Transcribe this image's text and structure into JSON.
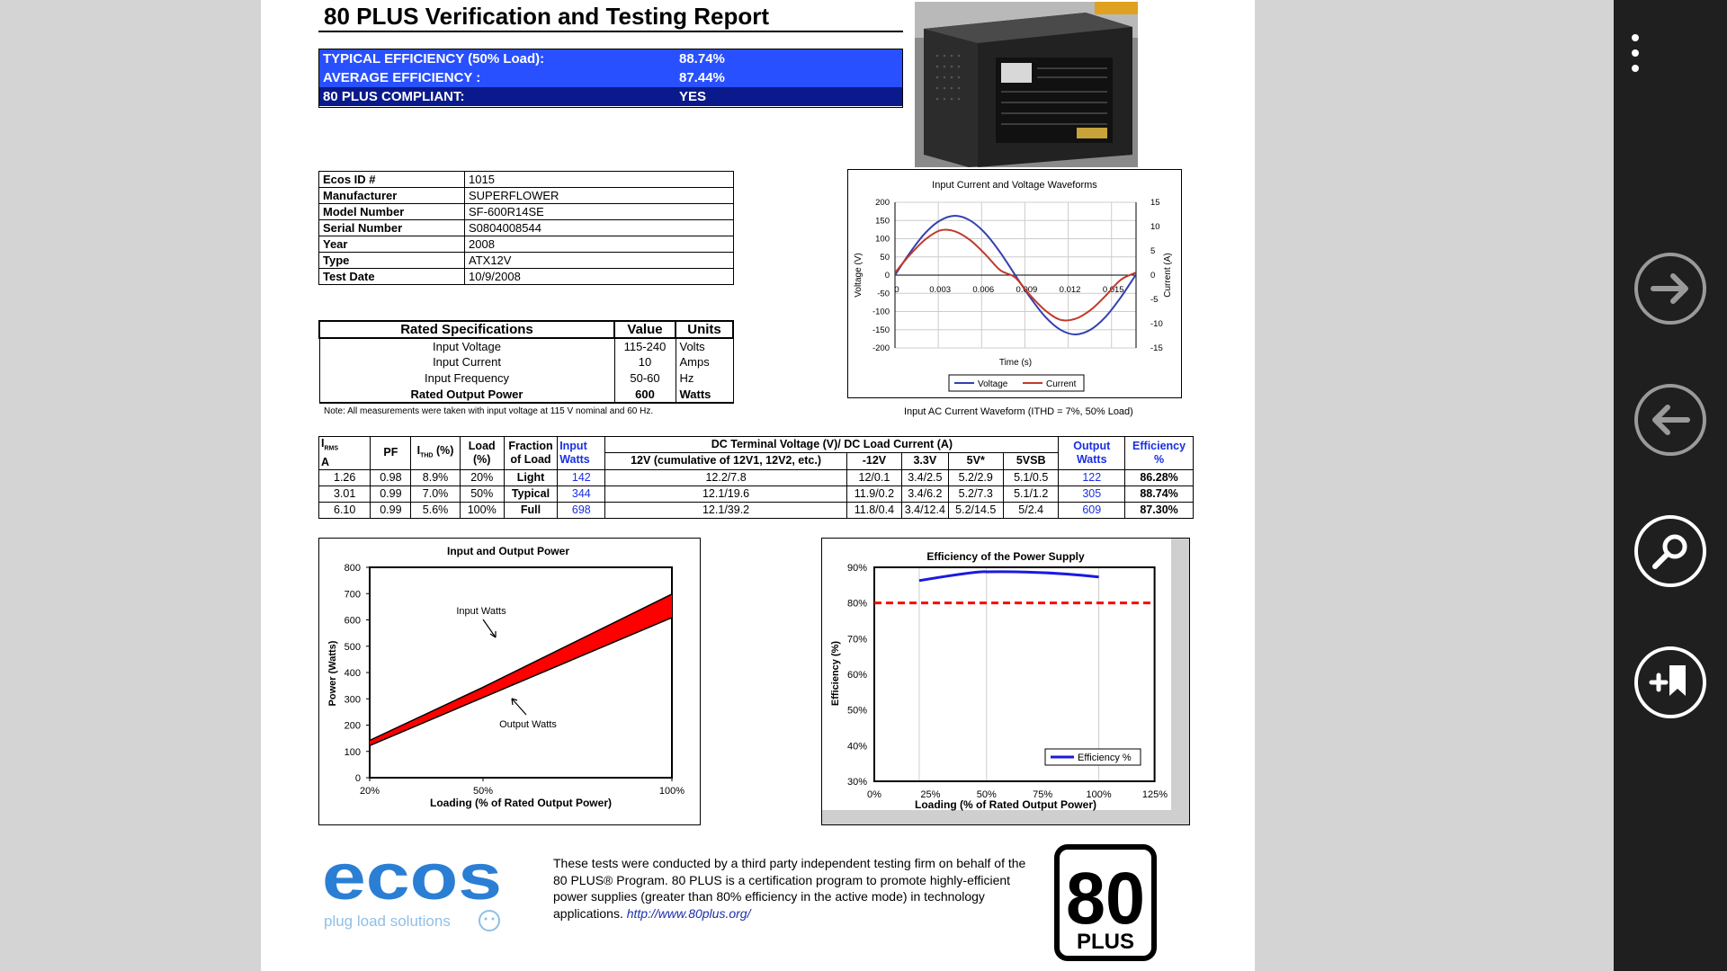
{
  "report": {
    "title": "80 PLUS Verification and Testing Report",
    "summary": [
      {
        "label": "TYPICAL EFFICIENCY (50% Load):",
        "value": "88.74%"
      },
      {
        "label": "AVERAGE EFFICIENCY :",
        "value": "87.44%"
      },
      {
        "label": "80 PLUS COMPLIANT:",
        "value": "YES"
      }
    ],
    "identity": [
      {
        "key": "Ecos ID #",
        "value": "1015"
      },
      {
        "key": "Manufacturer",
        "value": "SUPERFLOWER"
      },
      {
        "key": "Model Number",
        "value": "SF-600R14SE"
      },
      {
        "key": "Serial Number",
        "value": "S0804008544"
      },
      {
        "key": "Year",
        "value": "2008"
      },
      {
        "key": "Type",
        "value": "ATX12V"
      },
      {
        "key": "Test Date",
        "value": "10/9/2008"
      }
    ],
    "rated_specs": {
      "headers": [
        "Rated Specifications",
        "Value",
        "Units"
      ],
      "rows": [
        [
          "Input Voltage",
          "115-240",
          "Volts"
        ],
        [
          "Input Current",
          "10",
          "Amps"
        ],
        [
          "Input Frequency",
          "50-60",
          "Hz"
        ],
        [
          "Rated Output Power",
          "600",
          "Watts"
        ]
      ]
    },
    "note": "Note: All measurements were taken with input voltage at 115 V nominal and 60 Hz.",
    "waveform_caption": "Input AC Current Waveform (ITHD = 7%, 50% Load)",
    "data_table": {
      "h_irms": "I",
      "h_irms_sub": "RMS",
      "h_irms_unit": "A",
      "h_pf": "PF",
      "h_ithd": "I",
      "h_ithd_sub": "THD",
      "h_ithd_unit": "(%)",
      "h_load": "Load (%)",
      "h_fraction": "Fraction of Load",
      "h_input": "Input Watts",
      "h_dc": "DC Terminal Voltage (V)/ DC Load Current (A)",
      "h_12v": "12V (cumulative of 12V1, 12V2, etc.)",
      "h_m12v": "-12V",
      "h_33v": "3.3V",
      "h_5v": "5V*",
      "h_5vsb": "5VSB",
      "h_output": "Output Watts",
      "h_eff": "Efficiency %",
      "rows": [
        {
          "irms": "1.26",
          "pf": "0.98",
          "ithd": "8.9%",
          "load": "20%",
          "fraction": "Light",
          "input": "142",
          "v12": "12.2/7.8",
          "vm12": "12/0.1",
          "v33": "3.4/2.5",
          "v5": "5.2/2.9",
          "v5sb": "5.1/0.5",
          "output": "122",
          "eff": "86.28%"
        },
        {
          "irms": "3.01",
          "pf": "0.99",
          "ithd": "7.0%",
          "load": "50%",
          "fraction": "Typical",
          "input": "344",
          "v12": "12.1/19.6",
          "vm12": "11.9/0.2",
          "v33": "3.4/6.2",
          "v5": "5.2/7.3",
          "v5sb": "5.1/1.2",
          "output": "305",
          "eff": "88.74%"
        },
        {
          "irms": "6.10",
          "pf": "0.99",
          "ithd": "5.6%",
          "load": "100%",
          "fraction": "Full",
          "input": "698",
          "v12": "12.1/39.2",
          "vm12": "11.8/0.4",
          "v33": "3.4/12.4",
          "v5": "5.2/14.5",
          "v5sb": "5/2.4",
          "output": "609",
          "eff": "87.30%"
        }
      ]
    },
    "bottom_text": "These tests were conducted by a third party independent testing firm on behalf of the 80 PLUS® Program. 80 PLUS is a certification program to promote highly-efficient power supplies (greater than 80% efficiency in the active mode) in technology applications.",
    "bottom_link": "http://www.80plus.org/",
    "ecos_logo": {
      "word": "ecos",
      "tagline": "plug load solutions"
    },
    "plus_logo": {
      "number": "80",
      "word": "PLUS"
    }
  },
  "colors": {
    "summary_blue": "#2850ff",
    "summary_navy": "#0a1a8c",
    "voltage_line": "#3340b0",
    "current_line": "#c0392b",
    "io_fill": "#ff0000",
    "efficiency_line": "#1a1ae0",
    "threshold_line": "#ff0000",
    "ecos_blue": "#2a7fd4"
  },
  "chart_data": [
    {
      "type": "line",
      "title": "Input Current and Voltage Waveforms",
      "xlabel": "Time (s)",
      "ylabel": "Voltage (V)",
      "y2label": "Current (A)",
      "xlim": [
        0,
        0.0167
      ],
      "ylim": [
        -200,
        200
      ],
      "y2lim": [
        -15,
        15
      ],
      "xticks": [
        0,
        0.003,
        0.006,
        0.009,
        0.012,
        0.015
      ],
      "xtick_labels": [
        "0",
        "0.003",
        "0.006",
        "0.009",
        "0.012",
        "0.015"
      ],
      "yticks": [
        200,
        150,
        100,
        50,
        0,
        -50,
        -100,
        -150,
        -200
      ],
      "y2ticks": [
        15,
        10,
        5,
        0,
        -5,
        -10,
        -15
      ],
      "legend": "bottom",
      "grid": true,
      "series": [
        {
          "name": "Voltage",
          "axis": "left",
          "x": [
            0,
            0.00104,
            0.00208,
            0.00313,
            0.00417,
            0.00521,
            0.00625,
            0.0073,
            0.00833,
            0.00938,
            0.01042,
            0.01146,
            0.0125,
            0.01354,
            0.01458,
            0.01563,
            0.01667
          ],
          "values": [
            0,
            62,
            115,
            150,
            163,
            150,
            115,
            62,
            0,
            -62,
            -115,
            -150,
            -163,
            -150,
            -115,
            -62,
            0
          ]
        },
        {
          "name": "Current",
          "axis": "right",
          "x": [
            0,
            0.00104,
            0.00208,
            0.00313,
            0.00417,
            0.00521,
            0.00625,
            0.0073,
            0.00833,
            0.00938,
            0.01042,
            0.01146,
            0.0125,
            0.01354,
            0.01458,
            0.01563,
            0.01667
          ],
          "values": [
            0.5,
            4.2,
            7.3,
            9.2,
            9.0,
            7.2,
            4.3,
            1.0,
            -0.5,
            -4.2,
            -7.3,
            -9.2,
            -9.0,
            -7.2,
            -4.3,
            -1.0,
            0.5
          ]
        }
      ]
    },
    {
      "type": "area",
      "title": "Input and Output Power",
      "xlabel": "Loading (% of Rated Output Power)",
      "ylabel": "Power (Watts)",
      "categories": [
        "20%",
        "50%",
        "100%"
      ],
      "ylim": [
        0,
        800
      ],
      "yticks": [
        0,
        100,
        200,
        300,
        400,
        500,
        600,
        700,
        800
      ],
      "annotations": [
        "Input Watts",
        "Output Watts"
      ],
      "series": [
        {
          "name": "Input Watts",
          "values": [
            142,
            344,
            698
          ]
        },
        {
          "name": "Output Watts",
          "values": [
            122,
            305,
            609
          ]
        }
      ]
    },
    {
      "type": "line",
      "title": "Efficiency of the Power Supply",
      "xlabel": "Loading (% of Rated Output Power)",
      "ylabel": "Efficiency (%)",
      "xlim": [
        0,
        125
      ],
      "ylim": [
        30,
        90
      ],
      "xtick_labels": [
        "0%",
        "25%",
        "50%",
        "75%",
        "100%",
        "125%"
      ],
      "ytick_labels": [
        "30%",
        "40%",
        "50%",
        "60%",
        "70%",
        "80%",
        "90%"
      ],
      "threshold": 80,
      "legend": "bottom-right",
      "series": [
        {
          "name": "Efficiency %",
          "x": [
            20,
            50,
            100
          ],
          "values": [
            86.28,
            88.74,
            87.3
          ]
        }
      ]
    }
  ],
  "appbar": {
    "buttons": [
      "more-icon",
      "forward-arrow-icon",
      "back-arrow-icon",
      "search-icon",
      "bookmark-add-icon"
    ]
  }
}
